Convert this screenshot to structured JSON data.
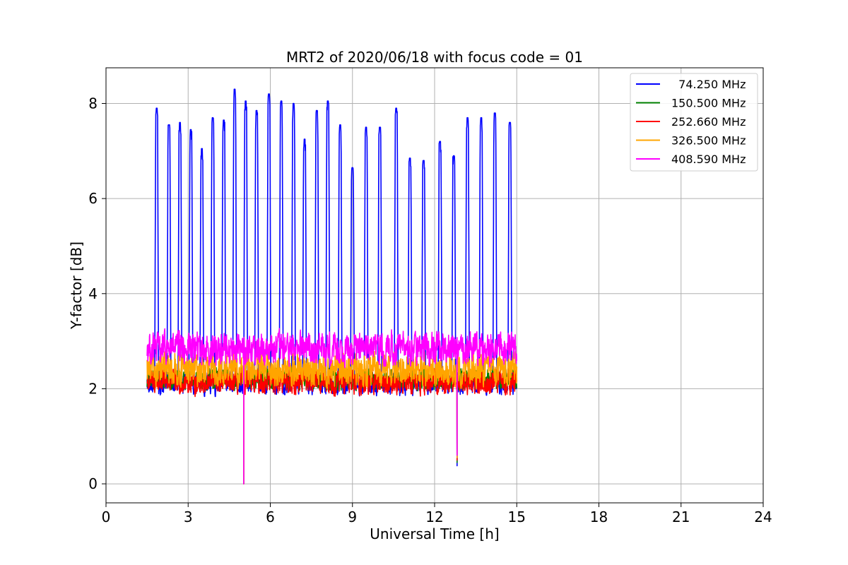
{
  "chart_data": {
    "type": "line",
    "title": "MRT2 of 2020/06/18 with focus code = 01",
    "xlabel": "Universal Time [h]",
    "ylabel": "Y-factor [dB]",
    "xlim": [
      0,
      24
    ],
    "ylim": [
      -0.4,
      8.75
    ],
    "xticks": [
      0,
      3,
      6,
      9,
      12,
      15,
      18,
      21,
      24
    ],
    "yticks": [
      0,
      2,
      4,
      6,
      8
    ],
    "xtick_labels": [
      "0",
      "3",
      "6",
      "9",
      "12",
      "15",
      "18",
      "21",
      "24"
    ],
    "ytick_labels": [
      "0",
      "2",
      "4",
      "6",
      "8"
    ],
    "grid": true,
    "legend_position": "top-right",
    "x_range_of_data": [
      1.5,
      15.0
    ],
    "series": [
      {
        "name": "  74.250 MHz",
        "color": "#0000ff",
        "baseline": 2.1,
        "noise": 0.3,
        "peaks": [
          {
            "x": 1.85,
            "y": 7.9
          },
          {
            "x": 2.3,
            "y": 7.55
          },
          {
            "x": 2.7,
            "y": 7.6
          },
          {
            "x": 3.1,
            "y": 7.45
          },
          {
            "x": 3.5,
            "y": 7.05
          },
          {
            "x": 3.9,
            "y": 7.7
          },
          {
            "x": 4.3,
            "y": 7.65
          },
          {
            "x": 4.7,
            "y": 8.3
          },
          {
            "x": 5.1,
            "y": 8.05
          },
          {
            "x": 5.5,
            "y": 7.85
          },
          {
            "x": 5.95,
            "y": 8.2
          },
          {
            "x": 6.4,
            "y": 8.05
          },
          {
            "x": 6.85,
            "y": 8.0
          },
          {
            "x": 7.25,
            "y": 7.25
          },
          {
            "x": 7.7,
            "y": 7.85
          },
          {
            "x": 8.1,
            "y": 8.05
          },
          {
            "x": 8.55,
            "y": 7.55
          },
          {
            "x": 9.0,
            "y": 6.65
          },
          {
            "x": 9.5,
            "y": 7.5
          },
          {
            "x": 10.0,
            "y": 7.5
          },
          {
            "x": 10.6,
            "y": 7.9
          },
          {
            "x": 11.1,
            "y": 6.85
          },
          {
            "x": 11.6,
            "y": 6.8
          },
          {
            "x": 12.2,
            "y": 7.2
          },
          {
            "x": 12.7,
            "y": 6.9
          },
          {
            "x": 13.2,
            "y": 7.7
          },
          {
            "x": 13.7,
            "y": 7.7
          },
          {
            "x": 14.2,
            "y": 7.8
          },
          {
            "x": 14.75,
            "y": 7.6
          }
        ],
        "dips": [
          {
            "x": 5.03,
            "y": 0.0
          },
          {
            "x": 12.82,
            "y": 0.38
          }
        ]
      },
      {
        "name": "150.500 MHz",
        "color": "#008000",
        "baseline": 2.2,
        "noise": 0.3,
        "dips": [
          {
            "x": 5.03,
            "y": 0.0
          },
          {
            "x": 12.82,
            "y": 0.45
          }
        ]
      },
      {
        "name": "252.660 MHz",
        "color": "#ff0000",
        "baseline": 2.15,
        "noise": 0.35,
        "dips": [
          {
            "x": 5.03,
            "y": 0.0
          },
          {
            "x": 12.82,
            "y": 0.5
          }
        ]
      },
      {
        "name": "326.500 MHz",
        "color": "#ffa500",
        "baseline": 2.4,
        "noise": 0.45,
        "dips": [
          {
            "x": 5.03,
            "y": 0.0
          },
          {
            "x": 12.82,
            "y": 0.55
          }
        ]
      },
      {
        "name": "408.590 MHz",
        "color": "#ff00ff",
        "baseline": 2.85,
        "noise": 0.45,
        "dips": [
          {
            "x": 5.03,
            "y": 0.0
          },
          {
            "x": 12.82,
            "y": 0.6
          }
        ]
      }
    ]
  }
}
